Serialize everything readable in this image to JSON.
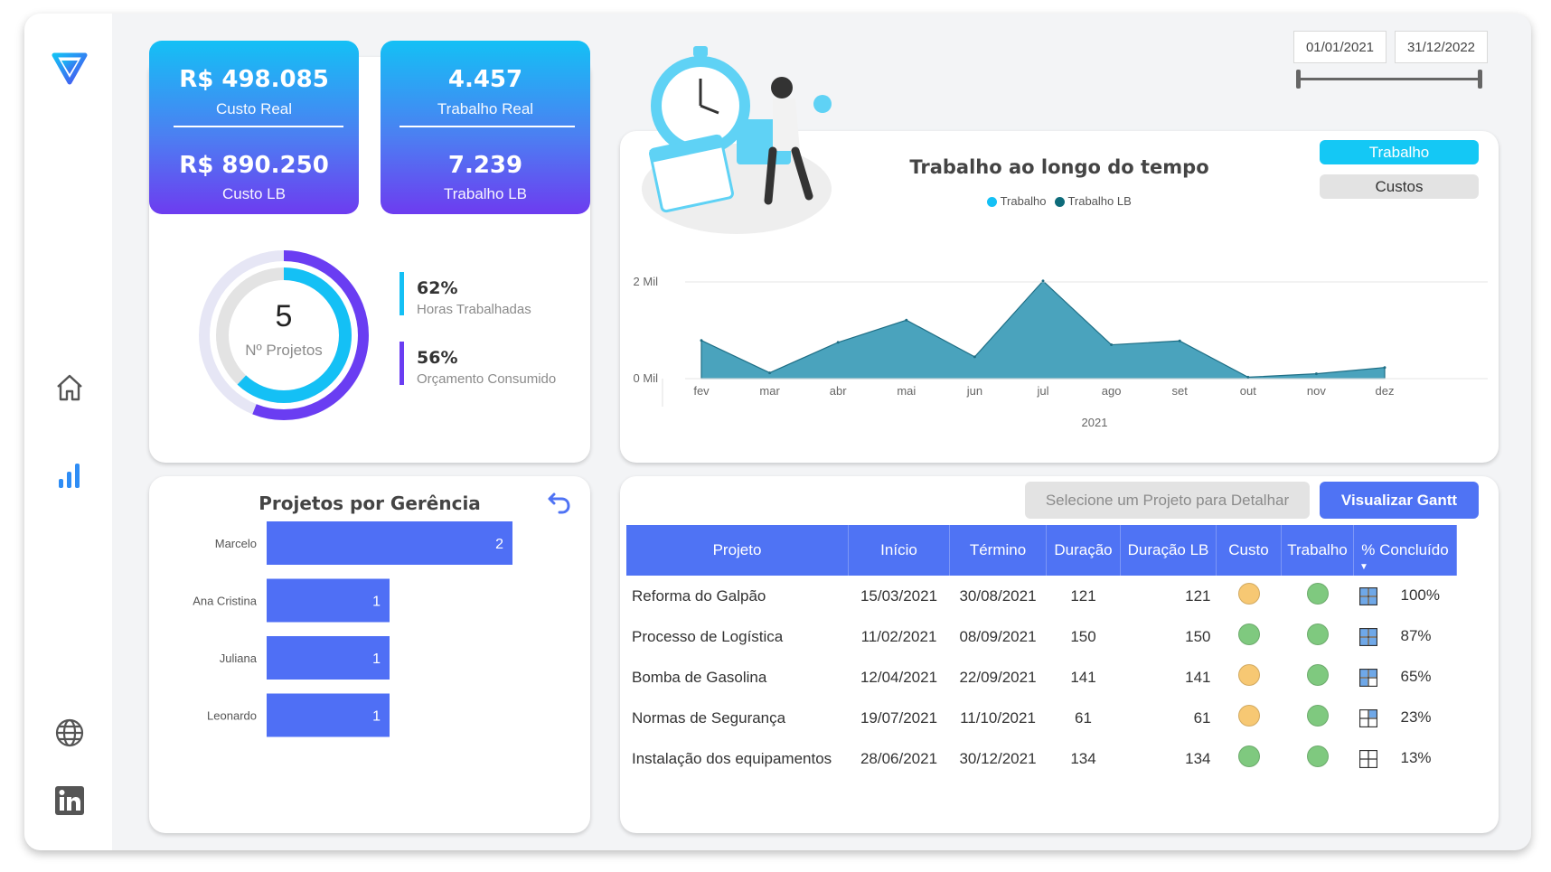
{
  "sidebar": {
    "logo": "v-logo-icon",
    "nav": [
      "home-icon",
      "bar-chart-icon",
      "globe-icon",
      "linkedin-icon"
    ]
  },
  "kpis": {
    "custo_real": {
      "value": "R$ 498.085",
      "label": "Custo Real"
    },
    "custo_lb": {
      "value": "R$ 890.250",
      "label": "Custo LB"
    },
    "trabalho_real": {
      "value": "4.457",
      "label": "Trabalho Real"
    },
    "trabalho_lb": {
      "value": "7.239",
      "label": "Trabalho LB"
    }
  },
  "projects_gauge": {
    "count": "5",
    "label": "Nº Projetos",
    "metrics": [
      {
        "value": "62%",
        "label": "Horas Trabalhadas",
        "fraction": 0.62
      },
      {
        "value": "56%",
        "label": "Orçamento Consumido",
        "fraction": 0.56
      }
    ]
  },
  "date_filter": {
    "start": "01/01/2021",
    "end": "31/12/2022"
  },
  "toggle": {
    "active": "Trabalho",
    "inactive": "Custos"
  },
  "colors": {
    "accent": "#4f73f4",
    "area": "#4aa3bd",
    "cyan": "#14c0f5",
    "purple": "#6d3cf0"
  },
  "chart_data": {
    "type": "area",
    "title": "Trabalho ao longo do tempo",
    "legend": [
      "Trabalho",
      "Trabalho LB"
    ],
    "legend_colors": [
      "#14c0f5",
      "#0d6b7a"
    ],
    "categories": [
      "fev",
      "mar",
      "abr",
      "mai",
      "jun",
      "jul",
      "ago",
      "set",
      "out",
      "nov",
      "dez"
    ],
    "xlabel": "2021",
    "y_ticks": [
      "0 Mil",
      "2 Mil"
    ],
    "ylim": [
      0,
      2000
    ],
    "series": [
      {
        "name": "Trabalho",
        "values": [
          790,
          120,
          750,
          1210,
          450,
          2020,
          700,
          780,
          30,
          100,
          230
        ]
      }
    ]
  },
  "bar_panel": {
    "title": "Projetos por Gerência",
    "chart_data": {
      "type": "bar",
      "categories": [
        "Marcelo",
        "Ana Cristina",
        "Juliana",
        "Leonardo"
      ],
      "values": [
        2,
        1,
        1,
        1
      ],
      "labels": [
        "2",
        "1",
        "1",
        "1"
      ],
      "xlim": [
        0,
        2
      ]
    }
  },
  "table_panel": {
    "select_placeholder": "Selecione um Projeto para Detalhar",
    "gantt_button": "Visualizar Gantt",
    "headers": [
      "Projeto",
      "Início",
      "Término",
      "Duração",
      "Duração LB",
      "Custo",
      "Trabalho",
      "% Concluído"
    ],
    "rows": [
      {
        "projeto": "Reforma do Galpão",
        "inicio": "15/03/2021",
        "termino": "30/08/2021",
        "duracao": "121",
        "duracao_lb": "121",
        "custo": "#f7c873",
        "trabalho": "#7fc97f",
        "grid": "full",
        "pct": "100%"
      },
      {
        "projeto": "Processo de Logística",
        "inicio": "11/02/2021",
        "termino": "08/09/2021",
        "duracao": "150",
        "duracao_lb": "150",
        "custo": "#7fc97f",
        "trabalho": "#7fc97f",
        "grid": "full",
        "pct": "87%"
      },
      {
        "projeto": "Bomba de Gasolina",
        "inicio": "12/04/2021",
        "termino": "22/09/2021",
        "duracao": "141",
        "duracao_lb": "141",
        "custo": "#f7c873",
        "trabalho": "#7fc97f",
        "grid": "three",
        "pct": "65%"
      },
      {
        "projeto": "Normas de Segurança",
        "inicio": "19/07/2021",
        "termino": "11/10/2021",
        "duracao": "61",
        "duracao_lb": "61",
        "custo": "#f7c873",
        "trabalho": "#7fc97f",
        "grid": "one",
        "pct": "23%"
      },
      {
        "projeto": "Instalação dos equipamentos",
        "inicio": "28/06/2021",
        "termino": "30/12/2021",
        "duracao": "134",
        "duracao_lb": "134",
        "custo": "#7fc97f",
        "trabalho": "#7fc97f",
        "grid": "none",
        "pct": "13%"
      }
    ]
  }
}
